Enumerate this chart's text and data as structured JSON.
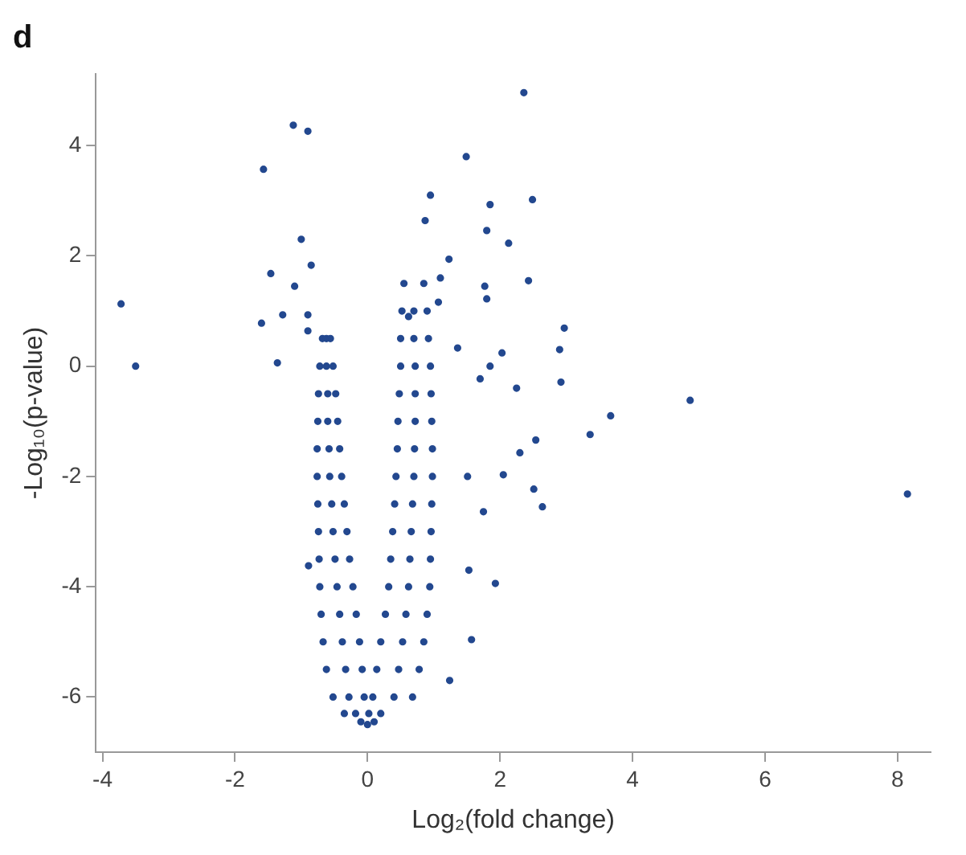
{
  "chart_data": {
    "type": "scatter",
    "title": "d",
    "xlabel": "Log₂(fold change)",
    "ylabel": "-Log₁₀(p-value)",
    "xlim": [
      -4.1,
      8.5
    ],
    "ylim": [
      -7,
      5.3
    ],
    "xticks": [
      -4,
      -2,
      0,
      2,
      4,
      6,
      8
    ],
    "yticks": [
      -6,
      -4,
      -2,
      0,
      2,
      4
    ],
    "grid": false,
    "legend": false,
    "marker": "circle",
    "series": [
      {
        "color": "#23488f",
        "x": [
          -0.68,
          -0.62,
          -0.56,
          -0.72,
          -0.62,
          -0.52,
          -0.74,
          -0.6,
          -0.48,
          -0.75,
          -0.6,
          -0.45,
          -0.76,
          -0.58,
          -0.42,
          -0.76,
          -0.57,
          -0.39,
          -0.75,
          -0.54,
          -0.35,
          -0.74,
          -0.52,
          -0.31,
          -0.73,
          -0.49,
          -0.27,
          -0.72,
          -0.46,
          -0.22,
          -0.7,
          -0.42,
          -0.17,
          -0.67,
          -0.38,
          -0.12,
          -0.62,
          -0.33,
          -0.08,
          -0.52,
          -0.28,
          -0.05,
          -0.35,
          -0.18,
          0.55,
          0.85,
          0.52,
          0.7,
          0.9,
          0.5,
          0.7,
          0.92,
          0.5,
          0.72,
          0.95,
          0.48,
          0.72,
          0.96,
          0.46,
          0.72,
          0.97,
          0.45,
          0.71,
          0.98,
          0.43,
          0.7,
          0.98,
          0.41,
          0.68,
          0.97,
          0.38,
          0.66,
          0.96,
          0.35,
          0.64,
          0.95,
          0.32,
          0.62,
          0.94,
          0.27,
          0.58,
          0.9,
          0.2,
          0.53,
          0.85,
          0.14,
          0.47,
          0.78,
          0.08,
          0.4,
          0.68,
          0.2,
          0.02,
          0,
          0.1,
          -0.1,
          -3.72,
          -3.5,
          -1.12,
          -0.9,
          -1.57,
          -1.0,
          -0.85,
          -1.46,
          -1.1,
          -1.6,
          -1.28,
          -0.9,
          -0.9,
          -1.36,
          2.36,
          1.49,
          0.95,
          0.87,
          2.49,
          1.85,
          1.8,
          2.13,
          1.23,
          2.43,
          1.1,
          1.77,
          1.8,
          2.97,
          2.9,
          2.03,
          1.85,
          2.92,
          2.25,
          1.7,
          4.87,
          3.67,
          1.36,
          0.62,
          1.07,
          8.15,
          3.36,
          2.54,
          2.3,
          2.05,
          2.51,
          2.64,
          1.75,
          1.51,
          1.93,
          1.57,
          1.24,
          -0.89,
          1.53
        ],
        "values": [
          0.5,
          0.5,
          0.5,
          0,
          0,
          0,
          -0.5,
          -0.5,
          -0.5,
          -1,
          -1,
          -1,
          -1.5,
          -1.5,
          -1.5,
          -2,
          -2,
          -2,
          -2.5,
          -2.5,
          -2.5,
          -3,
          -3,
          -3,
          -3.5,
          -3.5,
          -3.5,
          -4,
          -4,
          -4,
          -4.5,
          -4.5,
          -4.5,
          -5,
          -5,
          -5,
          -5.5,
          -5.5,
          -5.5,
          -6,
          -6,
          -6,
          -6.3,
          -6.3,
          1.5,
          1.5,
          1,
          1,
          1,
          0.5,
          0.5,
          0.5,
          0,
          0,
          0,
          -0.5,
          -0.5,
          -0.5,
          -1,
          -1,
          -1,
          -1.5,
          -1.5,
          -1.5,
          -2,
          -2,
          -2,
          -2.5,
          -2.5,
          -2.5,
          -3,
          -3,
          -3,
          -3.5,
          -3.5,
          -3.5,
          -4,
          -4,
          -4,
          -4.5,
          -4.5,
          -4.5,
          -5,
          -5,
          -5,
          -5.5,
          -5.5,
          -5.5,
          -6,
          -6,
          -6,
          -6.3,
          -6.3,
          -6.5,
          -6.45,
          -6.45,
          1.13,
          0,
          4.37,
          4.26,
          3.57,
          2.3,
          1.83,
          1.68,
          1.45,
          0.78,
          0.93,
          0.93,
          0.64,
          0.06,
          4.96,
          3.8,
          3.1,
          2.64,
          3.02,
          2.93,
          2.46,
          2.23,
          1.94,
          1.55,
          1.6,
          1.45,
          1.22,
          0.69,
          0.3,
          0.24,
          0,
          -0.29,
          -0.4,
          -0.23,
          -0.62,
          -0.9,
          0.33,
          0.9,
          1.16,
          -2.32,
          -1.24,
          -1.34,
          -1.57,
          -1.97,
          -2.23,
          -2.55,
          -2.64,
          -2.0,
          -3.94,
          -4.96,
          -5.7,
          -3.62,
          -3.7
        ]
      }
    ]
  }
}
